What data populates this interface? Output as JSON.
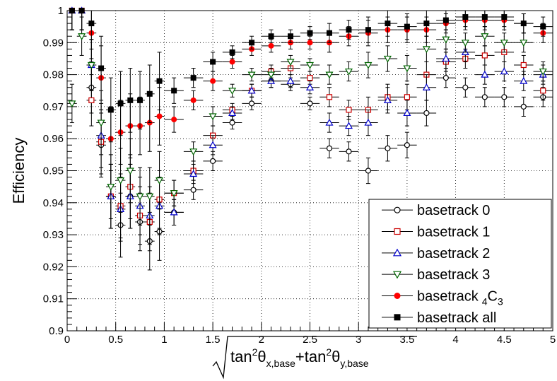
{
  "chart_data": {
    "type": "scatter",
    "xlabel_parts": [
      "tan",
      "2",
      "θ",
      "x,base",
      "+tan",
      "2",
      "θ",
      "y,base"
    ],
    "ylabel": "Efficiency",
    "xlim": [
      0,
      5
    ],
    "ylim": [
      0.9,
      1.0
    ],
    "x_ticks": [
      0,
      0.5,
      1,
      1.5,
      2,
      2.5,
      3,
      3.5,
      4,
      4.5,
      5
    ],
    "x_tick_labels": [
      "0",
      "0.5",
      "1",
      "1.5",
      "2",
      "2.5",
      "3",
      "3.5",
      "4",
      "4.5",
      "5"
    ],
    "y_ticks": [
      0.9,
      0.91,
      0.92,
      0.93,
      0.94,
      0.95,
      0.96,
      0.97,
      0.98,
      0.99,
      1.0
    ],
    "y_tick_labels": [
      "0.9",
      "0.91",
      "0.92",
      "0.93",
      "0.94",
      "0.95",
      "0.96",
      "0.97",
      "0.98",
      "0.99",
      "1"
    ],
    "grid": true,
    "legend_position": "bottom-right",
    "x": [
      0.05,
      0.15,
      0.25,
      0.35,
      0.45,
      0.55,
      0.65,
      0.75,
      0.85,
      0.95,
      1.1,
      1.3,
      1.5,
      1.7,
      1.9,
      2.1,
      2.3,
      2.5,
      2.7,
      2.9,
      3.1,
      3.3,
      3.5,
      3.7,
      3.9,
      4.1,
      4.3,
      4.5,
      4.7,
      4.9
    ],
    "x_err": [
      0.05,
      0.05,
      0.05,
      0.05,
      0.05,
      0.05,
      0.05,
      0.05,
      0.05,
      0.05,
      0.1,
      0.1,
      0.1,
      0.1,
      0.1,
      0.1,
      0.1,
      0.1,
      0.1,
      0.1,
      0.1,
      0.1,
      0.1,
      0.1,
      0.1,
      0.1,
      0.1,
      0.1,
      0.1,
      0.1
    ],
    "series": [
      {
        "name": "basetrack 0",
        "marker": "open-circle",
        "color": "#000000",
        "values": [
          1.0,
          1.0,
          0.976,
          0.958,
          0.942,
          0.933,
          0.942,
          0.934,
          0.928,
          0.931,
          0.937,
          0.944,
          0.953,
          0.965,
          0.971,
          0.978,
          0.977,
          0.971,
          0.957,
          0.956,
          0.95,
          0.957,
          0.958,
          0.968,
          0.979,
          0.976,
          0.973,
          0.973,
          0.97,
          0.973
        ],
        "errors": [
          0.006,
          0.006,
          0.008,
          0.01,
          0.01,
          0.01,
          0.01,
          0.009,
          0.009,
          0.009,
          0.004,
          0.003,
          0.003,
          0.002,
          0.002,
          0.002,
          0.002,
          0.002,
          0.003,
          0.003,
          0.004,
          0.004,
          0.004,
          0.004,
          0.003,
          0.003,
          0.003,
          0.003,
          0.003,
          0.003
        ]
      },
      {
        "name": "basetrack 1",
        "marker": "open-square",
        "color": "#cc0000",
        "values": [
          1.0,
          1.0,
          0.972,
          0.959,
          0.942,
          0.939,
          0.945,
          0.936,
          0.934,
          0.941,
          0.943,
          0.95,
          0.961,
          0.969,
          0.975,
          0.981,
          0.982,
          0.979,
          0.973,
          0.969,
          0.969,
          0.973,
          0.973,
          0.98,
          0.984,
          0.985,
          0.986,
          0.987,
          0.983,
          0.975
        ],
        "errors": [
          0.006,
          0.006,
          0.008,
          0.01,
          0.01,
          0.01,
          0.01,
          0.009,
          0.009,
          0.009,
          0.004,
          0.003,
          0.003,
          0.002,
          0.002,
          0.002,
          0.002,
          0.002,
          0.003,
          0.003,
          0.004,
          0.004,
          0.004,
          0.004,
          0.003,
          0.003,
          0.003,
          0.003,
          0.003,
          0.003
        ]
      },
      {
        "name": "basetrack 2",
        "marker": "open-triangle-up",
        "color": "#0000cc",
        "values": [
          1.0,
          1.0,
          0.983,
          0.961,
          0.942,
          0.938,
          0.942,
          0.939,
          0.936,
          0.939,
          0.937,
          0.949,
          0.958,
          0.968,
          0.975,
          0.978,
          0.978,
          0.976,
          0.965,
          0.964,
          0.965,
          0.972,
          0.968,
          0.976,
          0.985,
          0.987,
          0.98,
          0.981,
          0.978,
          0.98
        ],
        "errors": [
          0.006,
          0.006,
          0.008,
          0.01,
          0.01,
          0.01,
          0.01,
          0.009,
          0.009,
          0.009,
          0.004,
          0.003,
          0.003,
          0.002,
          0.002,
          0.002,
          0.002,
          0.002,
          0.003,
          0.003,
          0.004,
          0.004,
          0.004,
          0.004,
          0.003,
          0.003,
          0.003,
          0.003,
          0.003,
          0.003
        ]
      },
      {
        "name": "basetrack 3",
        "marker": "open-triangle-down",
        "color": "#006600",
        "values": [
          0.971,
          0.992,
          0.983,
          0.965,
          0.945,
          0.947,
          0.95,
          0.942,
          0.942,
          0.947,
          0.943,
          0.956,
          0.967,
          0.975,
          0.98,
          0.98,
          0.984,
          0.983,
          0.98,
          0.981,
          0.983,
          0.985,
          0.982,
          0.988,
          0.991,
          0.99,
          0.992,
          0.99,
          0.99,
          0.981
        ],
        "errors": [
          0.006,
          0.006,
          0.008,
          0.01,
          0.01,
          0.01,
          0.01,
          0.009,
          0.009,
          0.009,
          0.004,
          0.003,
          0.003,
          0.002,
          0.002,
          0.002,
          0.002,
          0.002,
          0.003,
          0.003,
          0.004,
          0.004,
          0.004,
          0.004,
          0.003,
          0.003,
          0.003,
          0.003,
          0.003,
          0.003
        ]
      },
      {
        "name": "basetrack",
        "name_subscript": "4",
        "name_suffix": "C",
        "name_suffix_subscript": "3",
        "marker": "filled-circle",
        "color": "#ff0000",
        "values": [
          1.0,
          1.0,
          0.993,
          0.979,
          0.96,
          0.962,
          0.964,
          0.964,
          0.965,
          0.967,
          0.966,
          0.972,
          0.978,
          0.984,
          0.988,
          0.989,
          0.99,
          0.99,
          0.99,
          0.992,
          0.993,
          0.994,
          0.994,
          0.994,
          0.996,
          0.997,
          0.997,
          0.997,
          0.996,
          0.993
        ],
        "errors": [
          0.006,
          0.006,
          0.008,
          0.01,
          0.01,
          0.01,
          0.01,
          0.009,
          0.009,
          0.009,
          0.004,
          0.003,
          0.003,
          0.002,
          0.002,
          0.002,
          0.002,
          0.002,
          0.003,
          0.003,
          0.004,
          0.004,
          0.004,
          0.004,
          0.003,
          0.003,
          0.003,
          0.003,
          0.003,
          0.003
        ]
      },
      {
        "name": "basetrack all",
        "marker": "filled-square",
        "color": "#000000",
        "values": [
          1.0,
          1.0,
          0.996,
          0.982,
          0.969,
          0.971,
          0.972,
          0.972,
          0.974,
          0.978,
          0.975,
          0.979,
          0.984,
          0.987,
          0.99,
          0.992,
          0.992,
          0.993,
          0.993,
          0.994,
          0.994,
          0.996,
          0.995,
          0.996,
          0.997,
          0.998,
          0.998,
          0.998,
          0.996,
          0.995
        ],
        "errors": [
          0.006,
          0.006,
          0.008,
          0.01,
          0.01,
          0.01,
          0.01,
          0.009,
          0.009,
          0.009,
          0.004,
          0.003,
          0.003,
          0.002,
          0.002,
          0.002,
          0.002,
          0.002,
          0.003,
          0.003,
          0.004,
          0.004,
          0.004,
          0.004,
          0.003,
          0.003,
          0.003,
          0.003,
          0.003,
          0.003
        ]
      }
    ]
  }
}
